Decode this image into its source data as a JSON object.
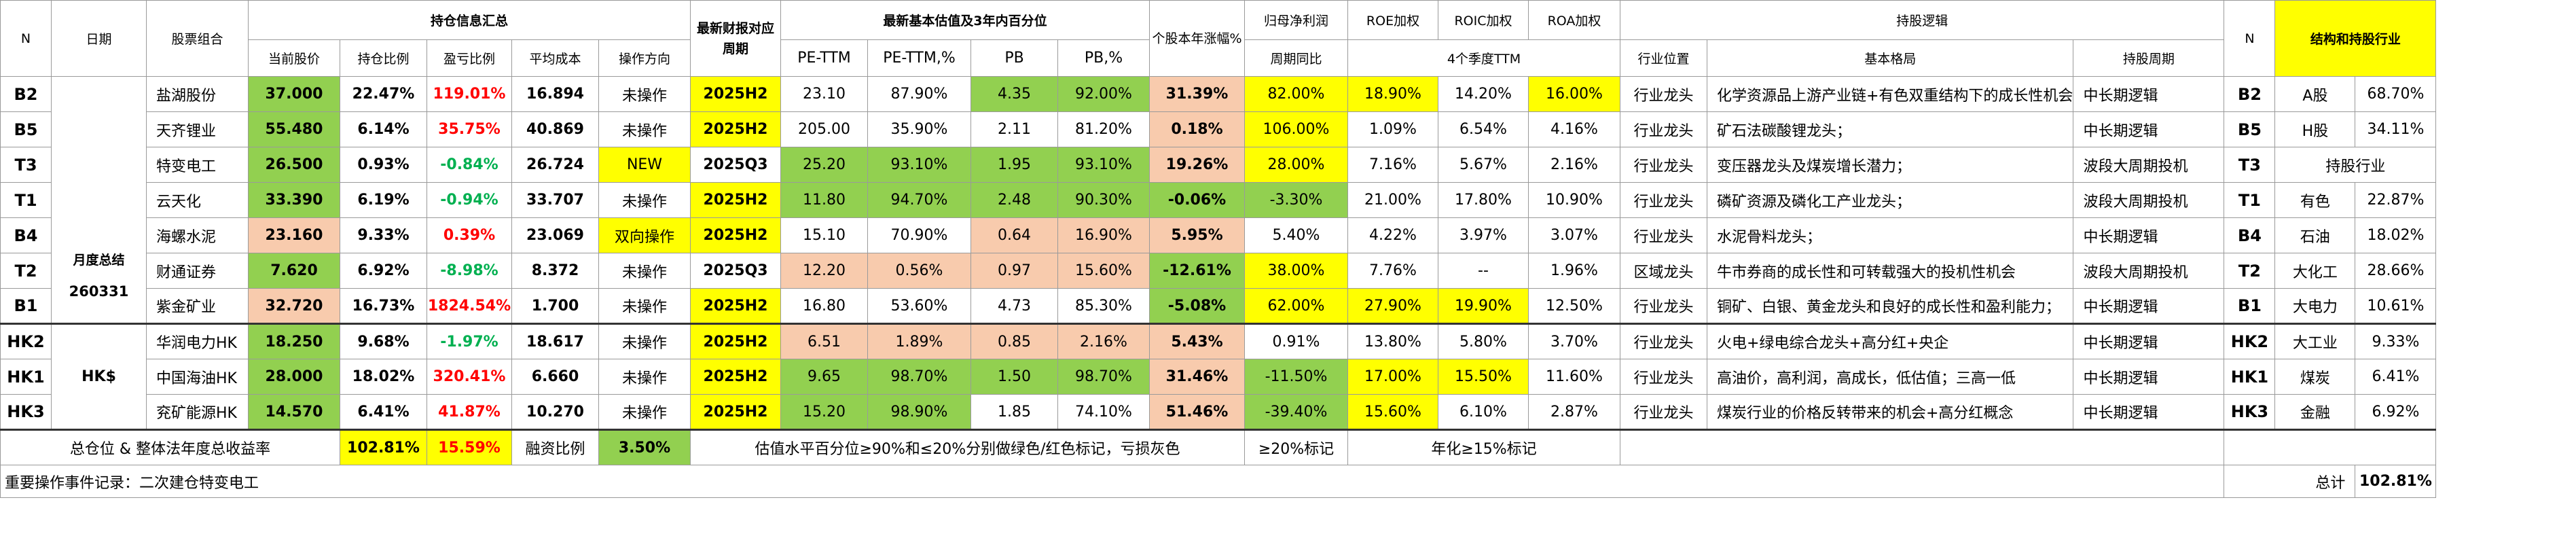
{
  "header": {
    "n": "N",
    "date": "日期",
    "portfolio": "股票组合",
    "holding_summary": "持仓信息汇总",
    "price": "当前股价",
    "weight": "持仓比例",
    "pnl": "盈亏比例",
    "avg_cost": "平均成本",
    "direction": "操作方向",
    "report_period": "最新财报对应周期",
    "valuation_title": "最新基本估值及3年内百分位",
    "pe": "PE-TTM",
    "pe_pct": "PE-TTM,%",
    "pb": "PB",
    "pb_pct": "PB,%",
    "ytd": "个股本年涨幅%",
    "profit_title": "归母净利润",
    "profit_sub": "周期同比",
    "roe": "ROE加权",
    "roic": "ROIC加权",
    "roa": "ROA加权",
    "ttm4": "4个季度TTM",
    "holding_logic": "持股逻辑",
    "industry_pos": "行业位置",
    "pattern": "基本格局",
    "cycle": "持股周期",
    "n2": "N",
    "structure": "结构和持股行业"
  },
  "rows": [
    {
      "code": "B2",
      "name": "盐湖股份",
      "price": "37.000",
      "weight": "22.47%",
      "pnl": "119.01%",
      "cost": "16.894",
      "dir": "未操作",
      "period": "2025H2",
      "pe": "23.10",
      "pe_pct": "87.90%",
      "pb": "4.35",
      "pb_pct": "92.00%",
      "ytd": "31.39%",
      "profit": "82.00%",
      "roe": "18.90%",
      "roic": "14.20%",
      "roa": "16.00%",
      "pos": "行业龙头",
      "pattern": "化学资源品上游产业链+有色双重结构下的成长性机会",
      "cycle": "中长期逻辑",
      "n2": "B2",
      "ind": "A股",
      "ind_pct": "68.70%"
    },
    {
      "code": "B5",
      "name": "天齐锂业",
      "price": "55.480",
      "weight": "6.14%",
      "pnl": "35.75%",
      "cost": "40.869",
      "dir": "未操作",
      "period": "2025H2",
      "pe": "205.00",
      "pe_pct": "35.90%",
      "pb": "2.11",
      "pb_pct": "81.20%",
      "ytd": "0.18%",
      "profit": "106.00%",
      "roe": "1.09%",
      "roic": "6.54%",
      "roa": "4.16%",
      "pos": "行业龙头",
      "pattern": "矿石法碳酸锂龙头；",
      "cycle": "中长期逻辑",
      "n2": "B5",
      "ind": "H股",
      "ind_pct": "34.11%"
    },
    {
      "code": "T3",
      "name": "特变电工",
      "price": "26.500",
      "weight": "0.93%",
      "pnl": "-0.84%",
      "cost": "26.724",
      "dir": "NEW",
      "period": "2025Q3",
      "pe": "25.20",
      "pe_pct": "93.10%",
      "pb": "1.95",
      "pb_pct": "93.10%",
      "ytd": "19.26%",
      "profit": "28.00%",
      "roe": "7.16%",
      "roic": "5.67%",
      "roa": "2.16%",
      "pos": "行业龙头",
      "pattern": "变压器龙头及煤炭增长潜力；",
      "cycle": "波段大周期投机",
      "n2": "T3",
      "ind": "持股行业",
      "ind_pct": ""
    },
    {
      "code": "T1",
      "name": "云天化",
      "price": "33.390",
      "weight": "6.19%",
      "pnl": "-0.94%",
      "cost": "33.707",
      "dir": "未操作",
      "period": "2025H2",
      "pe": "11.80",
      "pe_pct": "94.70%",
      "pb": "2.48",
      "pb_pct": "90.30%",
      "ytd": "-0.06%",
      "profit": "-3.30%",
      "roe": "21.00%",
      "roic": "17.80%",
      "roa": "10.90%",
      "pos": "行业龙头",
      "pattern": "磷矿资源及磷化工产业龙头；",
      "cycle": "波段大周期投机",
      "n2": "T1",
      "ind": "有色",
      "ind_pct": "22.87%"
    },
    {
      "code": "B4",
      "name": "海螺水泥",
      "price": "23.160",
      "weight": "9.33%",
      "pnl": "0.39%",
      "cost": "23.069",
      "dir": "双向操作",
      "period": "2025H2",
      "pe": "15.10",
      "pe_pct": "70.90%",
      "pb": "0.64",
      "pb_pct": "16.90%",
      "ytd": "5.95%",
      "profit": "5.40%",
      "roe": "4.22%",
      "roic": "3.97%",
      "roa": "3.07%",
      "pos": "行业龙头",
      "pattern": "水泥骨料龙头；",
      "cycle": "中长期逻辑",
      "n2": "B4",
      "ind": "石油",
      "ind_pct": "18.02%"
    },
    {
      "code": "T2",
      "name": "财通证券",
      "price": "7.620",
      "weight": "6.92%",
      "pnl": "-8.98%",
      "cost": "8.372",
      "dir": "未操作",
      "period": "2025Q3",
      "pe": "12.20",
      "pe_pct": "0.56%",
      "pb": "0.97",
      "pb_pct": "15.60%",
      "ytd": "-12.61%",
      "profit": "38.00%",
      "roe": "7.76%",
      "roic": "--",
      "roa": "1.96%",
      "pos": "区域龙头",
      "pattern": "牛市券商的成长性和可转载强大的投机性机会",
      "cycle": "波段大周期投机",
      "n2": "T2",
      "ind": "大化工",
      "ind_pct": "28.66%"
    },
    {
      "code": "B1",
      "name": "紫金矿业",
      "price": "32.720",
      "weight": "16.73%",
      "pnl": "1824.54%",
      "cost": "1.700",
      "dir": "未操作",
      "period": "2025H2",
      "pe": "16.80",
      "pe_pct": "53.60%",
      "pb": "4.73",
      "pb_pct": "85.30%",
      "ytd": "-5.08%",
      "profit": "62.00%",
      "roe": "27.90%",
      "roic": "19.90%",
      "roa": "12.50%",
      "pos": "行业龙头",
      "pattern": "铜矿、白银、黄金龙头和良好的成长性和盈利能力；",
      "cycle": "中长期逻辑",
      "n2": "B1",
      "ind": "大电力",
      "ind_pct": "10.61%"
    },
    {
      "code": "HK2",
      "name": "华润电力HK",
      "price": "18.250",
      "weight": "9.68%",
      "pnl": "-1.97%",
      "cost": "18.617",
      "dir": "未操作",
      "period": "2025H2",
      "pe": "6.51",
      "pe_pct": "1.89%",
      "pb": "0.85",
      "pb_pct": "2.16%",
      "ytd": "5.43%",
      "profit": "0.91%",
      "roe": "13.80%",
      "roic": "5.80%",
      "roa": "3.70%",
      "pos": "行业龙头",
      "pattern": "火电+绿电综合龙头+高分红+央企",
      "cycle": "中长期逻辑",
      "n2": "HK2",
      "ind": "大工业",
      "ind_pct": "9.33%"
    },
    {
      "code": "HK1",
      "name": "中国海油HK",
      "price": "28.000",
      "weight": "18.02%",
      "pnl": "320.41%",
      "cost": "6.660",
      "dir": "未操作",
      "period": "2025H2",
      "pe": "9.65",
      "pe_pct": "98.70%",
      "pb": "1.50",
      "pb_pct": "98.70%",
      "ytd": "31.46%",
      "profit": "-11.50%",
      "roe": "17.00%",
      "roic": "15.50%",
      "roa": "11.60%",
      "pos": "行业龙头",
      "pattern": "高油价，高利润，高成长，低估值；三高一低",
      "cycle": "中长期逻辑",
      "n2": "HK1",
      "ind": "煤炭",
      "ind_pct": "6.41%"
    },
    {
      "code": "HK3",
      "name": "兖矿能源HK",
      "price": "14.570",
      "weight": "6.41%",
      "pnl": "41.87%",
      "cost": "10.270",
      "dir": "未操作",
      "period": "2025H2",
      "pe": "15.20",
      "pe_pct": "98.90%",
      "pb": "1.85",
      "pb_pct": "74.10%",
      "ytd": "51.46%",
      "profit": "-39.40%",
      "roe": "15.60%",
      "roic": "6.10%",
      "roa": "2.87%",
      "pos": "行业龙头",
      "pattern": "煤炭行业的价格反转带来的机会+高分红概念",
      "cycle": "中长期逻辑",
      "n2": "HK3",
      "ind": "金融",
      "ind_pct": "6.92%"
    }
  ],
  "side": {
    "summary_label": "月度总结",
    "date_value": "260331",
    "hk_label": "HK$"
  },
  "footer": {
    "total_label": "总仓位 & 整体法年度总收益率",
    "total_pos": "102.81%",
    "total_ret": "15.59%",
    "margin_label": "融资比例",
    "margin_val": "3.50%",
    "valuation_note": "估值水平百分位≥90%和≤20%分别做绿色/红色标记，亏损灰色",
    "ytd_note": "≥20%标记",
    "annual_note": "年化≥15%标记",
    "event": "重要操作事件记录：二次建仓特变电工",
    "sum_label": "总计",
    "sum_val": "102.81%"
  },
  "colors": {
    "green": "#92d050",
    "yellow": "#ffff00",
    "peach": "#f8cbad",
    "red": "#ff0000",
    "positive": "#00b050"
  }
}
